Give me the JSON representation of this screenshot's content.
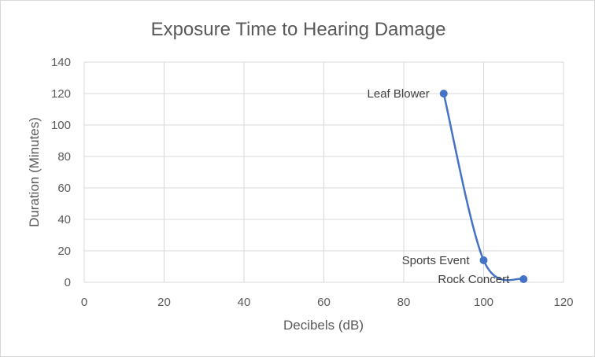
{
  "chart_data": {
    "type": "scatter",
    "title": "Exposure Time to Hearing Damage",
    "xlabel": "Decibels (dB)",
    "ylabel": "Duration (Minutes)",
    "xlim": [
      0,
      120
    ],
    "ylim": [
      0,
      140
    ],
    "x_ticks": [
      0,
      20,
      40,
      60,
      80,
      100,
      120
    ],
    "y_ticks": [
      0,
      20,
      40,
      60,
      80,
      100,
      120,
      140
    ],
    "grid": true,
    "smooth_line": true,
    "series": [
      {
        "points": [
          {
            "x": 90,
            "y": 120,
            "label": "Leaf Blower"
          },
          {
            "x": 100,
            "y": 14,
            "label": "Sports Event"
          },
          {
            "x": 110,
            "y": 2,
            "label": "Rock Concert"
          }
        ],
        "color": "#4472c4"
      }
    ],
    "colors": {
      "grid": "#d9d9d9",
      "axis_text": "#595959",
      "label_text": "#404040"
    }
  }
}
